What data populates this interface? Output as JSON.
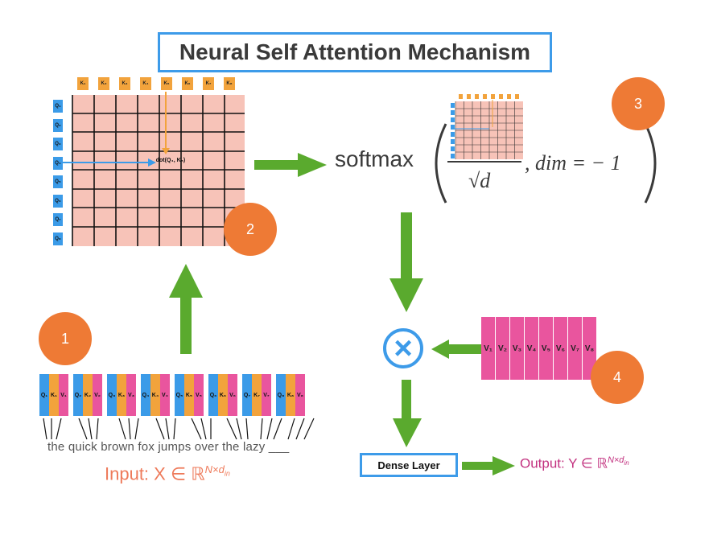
{
  "title": "Neural Self Attention Mechanism",
  "matrix": {
    "keys": [
      "K₁",
      "K₂",
      "K₃",
      "K₄",
      "K₅",
      "K₆",
      "K₇",
      "K₈"
    ],
    "queries": [
      "Q₁",
      "Q₂",
      "Q₃",
      "Q₄",
      "Q₅",
      "Q₆",
      "Q₇",
      "Q₈"
    ],
    "dot_label": "dot(Q₄, K₅)"
  },
  "formula": {
    "softmax": "softmax",
    "denominator": "√d",
    "dim": ", dim = − 1"
  },
  "badges": [
    "1",
    "2",
    "3",
    "4"
  ],
  "tokens": [
    {
      "q": "Q₁",
      "k": "K₁",
      "v": "V₁"
    },
    {
      "q": "Q₂",
      "k": "K₂",
      "v": "V₂"
    },
    {
      "q": "Q₃",
      "k": "K₃",
      "v": "V₃"
    },
    {
      "q": "Q₄",
      "k": "K₄",
      "v": "V₄"
    },
    {
      "q": "Q₅",
      "k": "K₅",
      "v": "V₅"
    },
    {
      "q": "Q₆",
      "k": "K₆",
      "v": "V₆"
    },
    {
      "q": "Q₇",
      "k": "K₇",
      "v": "V₇"
    },
    {
      "q": "Q₈",
      "k": "K₈",
      "v": "V₈"
    }
  ],
  "sentence": "the quick brown fox jumps over the lazy ___",
  "input_label": "Input: X ∈ ℝ",
  "input_sup": "N×d",
  "input_sub": "in",
  "values": [
    "V₁",
    "V₂",
    "V₃",
    "V₄",
    "V₅",
    "V₆",
    "V₇",
    "V₈"
  ],
  "multiply_symbol": "×",
  "dense_label": "Dense Layer",
  "output_label": "Output: Y ∈ ℝ",
  "output_sup": "N×d",
  "output_sub": "in",
  "colors": {
    "accent_blue": "#3d9be9",
    "arrow_green": "#5aaa2e",
    "badge_orange": "#ee7a35",
    "matrix_pink": "#f7c3b8",
    "key_orange": "#f2a33c",
    "value_pink": "#e9559e"
  }
}
